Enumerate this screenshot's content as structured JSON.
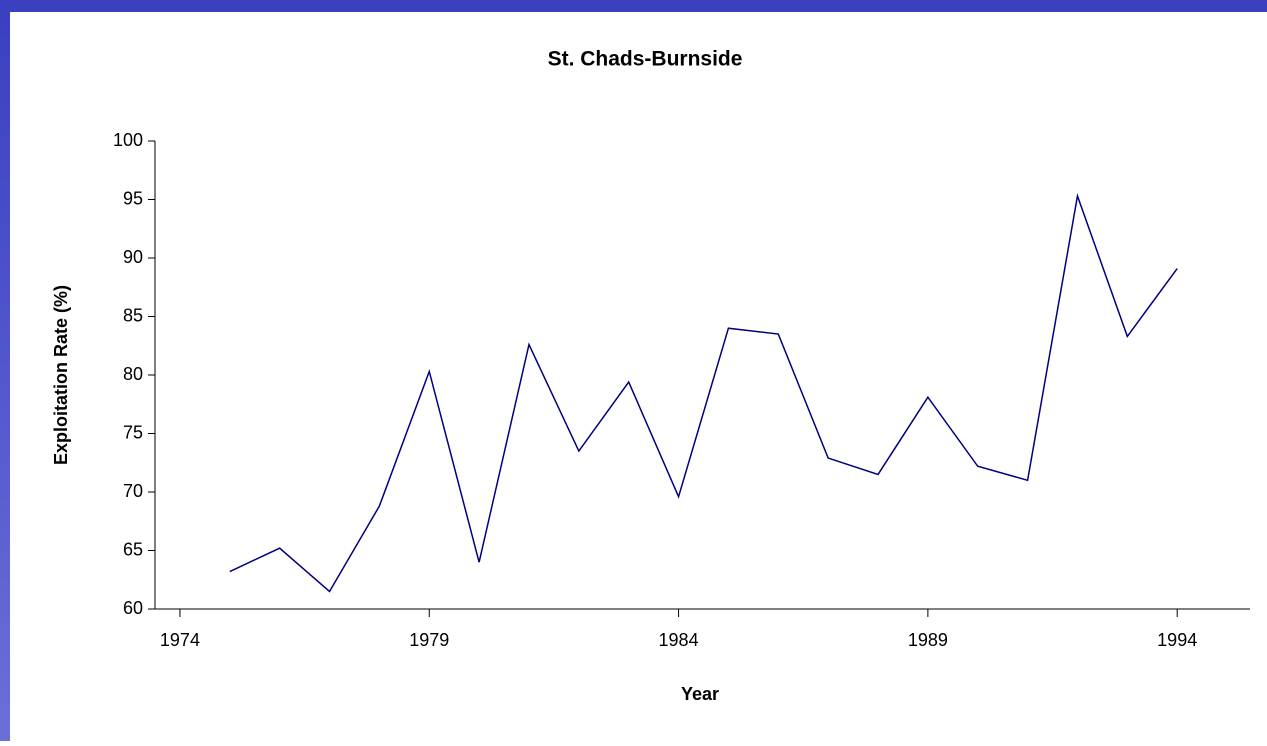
{
  "chart_data": {
    "type": "line",
    "title": "St. Chads-Burnside",
    "x_label": "Year",
    "y_label": "Exploitation Rate (%)",
    "x": [
      1975,
      1976,
      1977,
      1978,
      1979,
      1980,
      1981,
      1982,
      1983,
      1984,
      1985,
      1986,
      1987,
      1988,
      1989,
      1990,
      1991,
      1992,
      1993,
      1994
    ],
    "series": [
      {
        "name": "Exploitation Rate",
        "color": "#000080",
        "values": [
          63.2,
          65.2,
          61.5,
          68.8,
          80.3,
          64.0,
          82.6,
          73.5,
          79.4,
          69.6,
          84.0,
          83.5,
          72.9,
          71.5,
          78.1,
          72.2,
          71.0,
          95.3,
          83.3,
          89.1
        ]
      }
    ],
    "xlim": [
      1973.5,
      1995.46
    ],
    "xticks": [
      1974,
      1979,
      1984,
      1989,
      1994
    ],
    "ylim": [
      60,
      100
    ],
    "yticks": [
      60,
      65,
      70,
      75,
      80,
      85,
      90,
      95,
      100
    ]
  }
}
